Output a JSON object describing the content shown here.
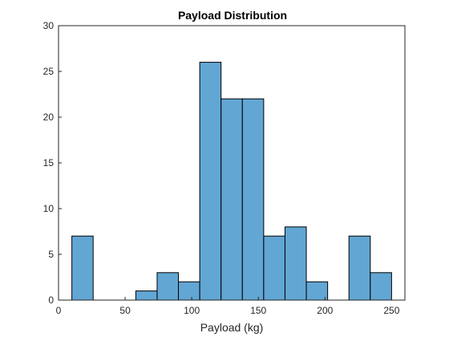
{
  "chart_data": {
    "type": "bar",
    "title": "Payload Distribution",
    "xlabel": "Payload (kg)",
    "ylabel": "",
    "xlim": [
      0,
      260
    ],
    "ylim": [
      0,
      30
    ],
    "xticks": [
      0,
      50,
      100,
      150,
      200,
      250
    ],
    "yticks": [
      0,
      5,
      10,
      15,
      20,
      25,
      30
    ],
    "bin_width": 16,
    "bin_edges": [
      10,
      26,
      42,
      58,
      74,
      90,
      106,
      122,
      138,
      154,
      170,
      186,
      202,
      218,
      234,
      250
    ],
    "values": [
      7,
      0,
      0,
      1,
      3,
      2,
      26,
      22,
      22,
      7,
      8,
      2,
      0,
      7,
      3
    ],
    "bar_color": "#62a6d4",
    "grid": false,
    "legend": "none"
  }
}
